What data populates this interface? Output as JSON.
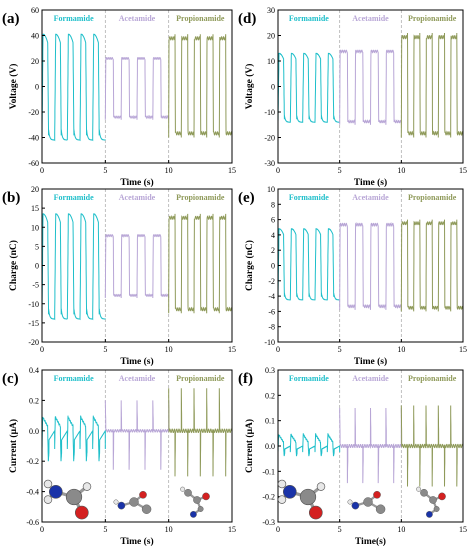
{
  "colors": {
    "formamide": "#1fbfca",
    "acetamide": "#b8a6d6",
    "propionamide": "#8f9a5a",
    "divider": "#b0b0b0",
    "axis": "#000000"
  },
  "chart_data": [
    {
      "panel": "(a)",
      "type": "line",
      "xlabel": "Time (s)",
      "ylabel": "Voltage (V)",
      "xlim": [
        0,
        15
      ],
      "ylim": [
        -60,
        60
      ],
      "xticks": [
        "0",
        "5",
        "10",
        "15"
      ],
      "yticks": [
        "-60",
        "-40",
        "-20",
        "0",
        "20",
        "40",
        "60"
      ],
      "dividers": [
        5,
        10
      ],
      "series": [
        {
          "name": "Formamide",
          "x_range": [
            0,
            5
          ],
          "cycles": 5,
          "high": 41,
          "low": -42,
          "shape": "wave"
        },
        {
          "name": "Acetamide",
          "x_range": [
            5,
            10
          ],
          "cycles": 4,
          "high": 24,
          "low": -26,
          "shape": "square"
        },
        {
          "name": "Propionamide",
          "x_range": [
            10,
            15
          ],
          "cycles": 5,
          "high": 41,
          "low": -40,
          "shape": "square"
        }
      ]
    },
    {
      "panel": "(d)",
      "type": "line",
      "xlabel": "Time (s)",
      "ylabel": "Voltage (V)",
      "xlim": [
        0,
        15
      ],
      "ylim": [
        -30,
        30
      ],
      "xticks": [
        "0",
        "5",
        "10",
        "15"
      ],
      "yticks": [
        "-30",
        "-20",
        "-10",
        "0",
        "10",
        "20",
        "30"
      ],
      "dividers": [
        5,
        10
      ],
      "series": [
        {
          "name": "Formamide",
          "x_range": [
            0,
            5
          ],
          "cycles": 5,
          "high": 13,
          "low": -14,
          "shape": "wave"
        },
        {
          "name": "Acetamide",
          "x_range": [
            5,
            10
          ],
          "cycles": 4,
          "high": 15,
          "low": -15,
          "shape": "square"
        },
        {
          "name": "Propionamide",
          "x_range": [
            10,
            15
          ],
          "cycles": 5,
          "high": 21,
          "low": -20,
          "shape": "square"
        }
      ]
    },
    {
      "panel": "(b)",
      "type": "line",
      "xlabel": "Time (s)",
      "ylabel": "Charge (nC)",
      "xlim": [
        0,
        15
      ],
      "ylim": [
        -20,
        20
      ],
      "xticks": [
        "0",
        "5",
        "10",
        "15"
      ],
      "yticks": [
        "-20",
        "-15",
        "-10",
        "-5",
        "0",
        "5",
        "10",
        "15",
        "20"
      ],
      "dividers": [
        5,
        10
      ],
      "series": [
        {
          "name": "Formamide",
          "x_range": [
            0,
            5
          ],
          "cycles": 5,
          "high": 13.5,
          "low": -14,
          "shape": "wave"
        },
        {
          "name": "Acetamide",
          "x_range": [
            5,
            10
          ],
          "cycles": 4,
          "high": 8.5,
          "low": -8.5,
          "shape": "square"
        },
        {
          "name": "Propionamide",
          "x_range": [
            10,
            15
          ],
          "cycles": 5,
          "high": 13.5,
          "low": -12.5,
          "shape": "square"
        }
      ]
    },
    {
      "panel": "(e)",
      "type": "line",
      "xlabel": "Time (s)",
      "ylabel": "Charge (nC)",
      "xlim": [
        0,
        15
      ],
      "ylim": [
        -10,
        10
      ],
      "xticks": [
        "0",
        "5",
        "10",
        "15"
      ],
      "yticks": [
        "-10",
        "-8",
        "-6",
        "-4",
        "-2",
        "0",
        "2",
        "4",
        "6",
        "8",
        "10"
      ],
      "dividers": [
        5,
        10
      ],
      "series": [
        {
          "name": "Formamide",
          "x_range": [
            0,
            5
          ],
          "cycles": 5,
          "high": 4.8,
          "low": -4.5,
          "shape": "wave"
        },
        {
          "name": "Acetamide",
          "x_range": [
            5,
            10
          ],
          "cycles": 4,
          "high": 5.8,
          "low": -5.8,
          "shape": "square"
        },
        {
          "name": "Propionamide",
          "x_range": [
            10,
            15
          ],
          "cycles": 5,
          "high": 6,
          "low": -6,
          "shape": "square"
        }
      ]
    },
    {
      "panel": "(c)",
      "type": "line",
      "xlabel": "Time (s)",
      "ylabel": "Current (μA)",
      "xlim": [
        0,
        15
      ],
      "ylim": [
        -0.6,
        0.4
      ],
      "xticks": [
        "0",
        "5",
        "10",
        "15"
      ],
      "yticks": [
        "-0.6",
        "-0.4",
        "-0.2",
        "0.0",
        "0.2",
        "0.4"
      ],
      "dividers": [
        5,
        10
      ],
      "series": [
        {
          "name": "Formamide",
          "x_range": [
            0,
            5
          ],
          "cycles": 5,
          "high": 0.1,
          "low": -0.2,
          "shape": "pulse"
        },
        {
          "name": "Acetamide",
          "x_range": [
            5,
            10
          ],
          "cycles": 4,
          "high": 0.2,
          "low": -0.28,
          "shape": "spike"
        },
        {
          "name": "Propionamide",
          "x_range": [
            10,
            15
          ],
          "cycles": 5,
          "high": 0.28,
          "low": -0.3,
          "shape": "spike"
        }
      ]
    },
    {
      "panel": "(f)",
      "type": "line",
      "xlabel": "Time(s)",
      "ylabel": "Current (μA)",
      "xlim": [
        0,
        15
      ],
      "ylim": [
        -0.3,
        0.3
      ],
      "xticks": [
        "0",
        "5",
        "10",
        "15"
      ],
      "yticks": [
        "-0.3",
        "-0.2",
        "-0.1",
        "0.0",
        "0.1",
        "0.2",
        "0.3"
      ],
      "dividers": [
        5,
        10
      ],
      "series": [
        {
          "name": "Formamide",
          "x_range": [
            0,
            5
          ],
          "cycles": 5,
          "high": 0.05,
          "low": -0.04,
          "shape": "pulse"
        },
        {
          "name": "Acetamide",
          "x_range": [
            5,
            10
          ],
          "cycles": 4,
          "high": 0.15,
          "low": -0.16,
          "shape": "spike"
        },
        {
          "name": "Propionamide",
          "x_range": [
            10,
            15
          ],
          "cycles": 5,
          "high": 0.16,
          "low": -0.16,
          "shape": "spike"
        }
      ]
    }
  ]
}
